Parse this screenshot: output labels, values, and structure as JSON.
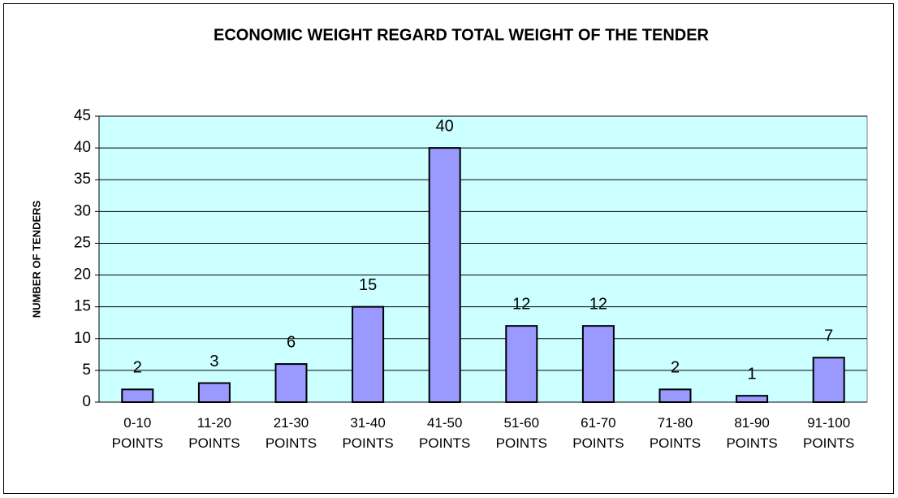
{
  "chart_data": {
    "type": "bar",
    "title": "ECONOMIC WEIGHT REGARD TOTAL WEIGHT OF THE TENDER",
    "y_label": "NUMBER OF TENDERS",
    "categories": [
      "0-10 POINTS",
      "11-20 POINTS",
      "21-30 POINTS",
      "31-40 POINTS",
      "41-50 POINTS",
      "51-60 POINTS",
      "61-70 POINTS",
      "71-80 POINTS",
      "81-90 POINTS",
      "91-100 POINTS"
    ],
    "values": [
      2,
      3,
      6,
      15,
      40,
      12,
      12,
      2,
      1,
      7
    ],
    "color": "#9999ff",
    "plot_background": "#ccffff",
    "ylim": [
      0,
      45
    ],
    "yticks": [
      0,
      5,
      10,
      15,
      20,
      25,
      30,
      35,
      40,
      45
    ],
    "grid": true
  }
}
